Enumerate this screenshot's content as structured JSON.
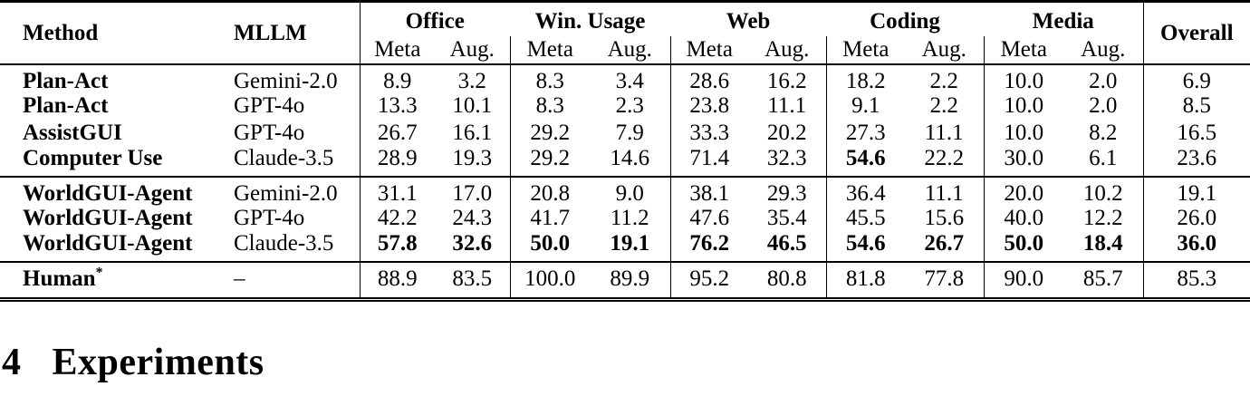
{
  "table": {
    "headers": {
      "method": "Method",
      "mllm": "MLLM",
      "overall": "Overall",
      "groups": [
        {
          "label": "Office",
          "sub": [
            "Meta",
            "Aug."
          ]
        },
        {
          "label": "Win. Usage",
          "sub": [
            "Meta",
            "Aug."
          ]
        },
        {
          "label": "Web",
          "sub": [
            "Meta",
            "Aug."
          ]
        },
        {
          "label": "Coding",
          "sub": [
            "Meta",
            "Aug."
          ]
        },
        {
          "label": "Media",
          "sub": [
            "Meta",
            "Aug."
          ]
        }
      ]
    },
    "blocks": [
      {
        "rows": [
          {
            "method": "Plan-Act",
            "mllm": "Gemini-2.0",
            "values": [
              "8.9",
              "3.2",
              "8.3",
              "3.4",
              "28.6",
              "16.2",
              "18.2",
              "2.2",
              "10.0",
              "2.0"
            ],
            "overall": "6.9",
            "bold_values": [],
            "overall_bold": false
          },
          {
            "method": "Plan-Act",
            "mllm": "GPT-4o",
            "values": [
              "13.3",
              "10.1",
              "8.3",
              "2.3",
              "23.8",
              "11.1",
              "9.1",
              "2.2",
              "10.0",
              "2.0"
            ],
            "overall": "8.5",
            "bold_values": [],
            "overall_bold": false
          },
          {
            "method": "AssistGUI",
            "mllm": "GPT-4o",
            "values": [
              "26.7",
              "16.1",
              "29.2",
              "7.9",
              "33.3",
              "20.2",
              "27.3",
              "11.1",
              "10.0",
              "8.2"
            ],
            "overall": "16.5",
            "bold_values": [],
            "overall_bold": false
          },
          {
            "method": "Computer Use",
            "mllm": "Claude-3.5",
            "values": [
              "28.9",
              "19.3",
              "29.2",
              "14.6",
              "71.4",
              "32.3",
              "54.6",
              "22.2",
              "30.0",
              "6.1"
            ],
            "overall": "23.6",
            "bold_values": [
              6
            ],
            "overall_bold": false
          }
        ]
      },
      {
        "rows": [
          {
            "method": "WorldGUI-Agent",
            "mllm": "Gemini-2.0",
            "values": [
              "31.1",
              "17.0",
              "20.8",
              "9.0",
              "38.1",
              "29.3",
              "36.4",
              "11.1",
              "20.0",
              "10.2"
            ],
            "overall": "19.1",
            "bold_values": [],
            "overall_bold": false
          },
          {
            "method": "WorldGUI-Agent",
            "mllm": "GPT-4o",
            "values": [
              "42.2",
              "24.3",
              "41.7",
              "11.2",
              "47.6",
              "35.4",
              "45.5",
              "15.6",
              "40.0",
              "12.2"
            ],
            "overall": "26.0",
            "bold_values": [],
            "overall_bold": false
          },
          {
            "method": "WorldGUI-Agent",
            "mllm": "Claude-3.5",
            "values": [
              "57.8",
              "32.6",
              "50.0",
              "19.1",
              "76.2",
              "46.5",
              "54.6",
              "26.7",
              "50.0",
              "18.4"
            ],
            "overall": "36.0",
            "bold_values": [
              0,
              1,
              2,
              3,
              4,
              5,
              6,
              7,
              8,
              9
            ],
            "overall_bold": true
          }
        ]
      },
      {
        "rows": [
          {
            "method": "Human",
            "method_sup": "*",
            "mllm": "–",
            "values": [
              "88.9",
              "83.5",
              "100.0",
              "89.9",
              "95.2",
              "80.8",
              "81.8",
              "77.8",
              "90.0",
              "85.7"
            ],
            "overall": "85.3",
            "bold_values": [],
            "overall_bold": false
          }
        ]
      }
    ]
  },
  "section": {
    "number": "4",
    "title": "Experiments"
  }
}
